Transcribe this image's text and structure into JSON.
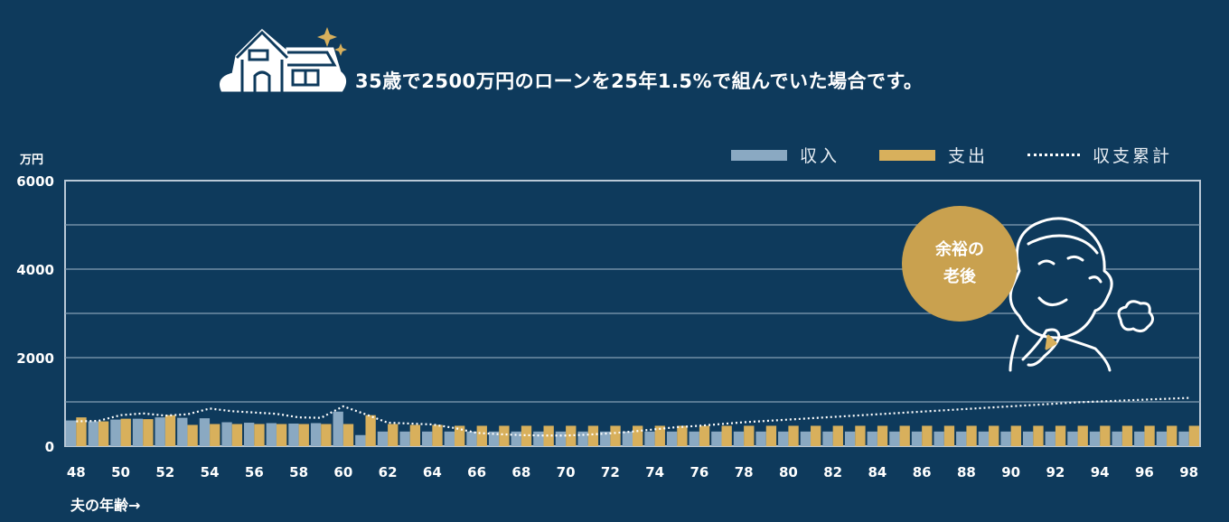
{
  "note": {
    "text": "35歳で2500万円のローンを25年1.5%で組んでいた場合です。"
  },
  "badge": {
    "line1": "余裕の",
    "line2": "老後"
  },
  "x_axis_title": "夫の年齢→",
  "y_unit": "万円",
  "colors": {
    "background": "#0e3a5c",
    "income": "#8aa9c2",
    "expense": "#d8b05c",
    "cumulative": "#ffffff",
    "badge": "#c9a14f"
  },
  "icons": [
    "house-icon",
    "sparkle-icon",
    "smiling-man-illustration"
  ],
  "chart_data": {
    "type": "bar",
    "ylim": [
      0,
      6000
    ],
    "yticks": [
      0,
      2000,
      4000,
      6000
    ],
    "grid": true,
    "legend_position": "top-right",
    "x": [
      48,
      49,
      50,
      51,
      52,
      53,
      54,
      55,
      56,
      57,
      58,
      59,
      60,
      61,
      62,
      63,
      64,
      65,
      66,
      67,
      68,
      69,
      70,
      71,
      72,
      73,
      74,
      75,
      76,
      77,
      78,
      79,
      80,
      81,
      82,
      83,
      84,
      85,
      86,
      87,
      88,
      89,
      90,
      91,
      92,
      93,
      94,
      95,
      96,
      97,
      98
    ],
    "xticks": [
      48,
      50,
      52,
      54,
      56,
      58,
      60,
      62,
      64,
      66,
      68,
      70,
      72,
      74,
      76,
      78,
      80,
      82,
      84,
      86,
      88,
      90,
      92,
      94,
      96,
      98
    ],
    "series": [
      {
        "name": "収入",
        "kind": "bar",
        "values": [
          580,
          560,
          600,
          620,
          650,
          640,
          630,
          540,
          530,
          520,
          510,
          520,
          780,
          250,
          330,
          330,
          330,
          330,
          330,
          330,
          330,
          330,
          330,
          330,
          330,
          330,
          330,
          330,
          330,
          330,
          330,
          330,
          330,
          330,
          330,
          330,
          330,
          330,
          330,
          330,
          330,
          330,
          330,
          330,
          330,
          330,
          330,
          330,
          330,
          330,
          330
        ]
      },
      {
        "name": "支出",
        "kind": "bar",
        "values": [
          650,
          560,
          620,
          610,
          700,
          480,
          500,
          500,
          500,
          500,
          500,
          500,
          500,
          700,
          500,
          480,
          480,
          460,
          460,
          460,
          460,
          460,
          460,
          460,
          460,
          460,
          460,
          460,
          460,
          460,
          460,
          460,
          460,
          460,
          460,
          460,
          460,
          460,
          460,
          460,
          460,
          460,
          460,
          460,
          460,
          460,
          460,
          460,
          460,
          460,
          460
        ]
      },
      {
        "name": "収支累計",
        "kind": "line",
        "values": [
          560,
          570,
          700,
          740,
          690,
          720,
          850,
          790,
          760,
          730,
          650,
          640,
          900,
          720,
          530,
          510,
          490,
          410,
          300,
          270,
          250,
          240,
          240,
          260,
          290,
          330,
          380,
          430,
          460,
          500,
          540,
          570,
          600,
          630,
          660,
          690,
          720,
          750,
          780,
          810,
          840,
          870,
          900,
          930,
          960,
          990,
          1010,
          1030,
          1050,
          1070,
          1090
        ]
      }
    ]
  }
}
